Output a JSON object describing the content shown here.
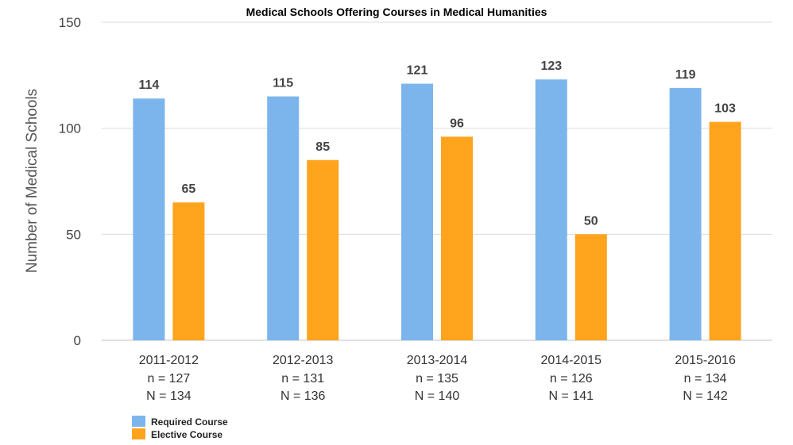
{
  "chart_data": {
    "type": "bar",
    "title": "Medical Schools Offering Courses in Medical Humanities",
    "xlabel": "",
    "ylabel": "Number of Medical Schools",
    "ylim": [
      0,
      150
    ],
    "yticks": [
      0,
      50,
      100,
      150
    ],
    "grid": true,
    "legend_position": "bottom-left",
    "categories": [
      "2011-2012",
      "2012-2013",
      "2013-2014",
      "2014-2015",
      "2015-2016"
    ],
    "category_sublabels": [
      [
        "n = 127",
        "N = 134"
      ],
      [
        "n = 131",
        "N = 136"
      ],
      [
        "n = 135",
        "N = 140"
      ],
      [
        "n = 126",
        "N = 141"
      ],
      [
        "n = 134",
        "N = 142"
      ]
    ],
    "series": [
      {
        "name": "Required Course",
        "color": "#7cb5ec",
        "values": [
          114,
          115,
          121,
          123,
          119
        ]
      },
      {
        "name": "Elective Course",
        "color": "#ffa41c",
        "values": [
          65,
          85,
          96,
          50,
          103
        ]
      }
    ]
  }
}
